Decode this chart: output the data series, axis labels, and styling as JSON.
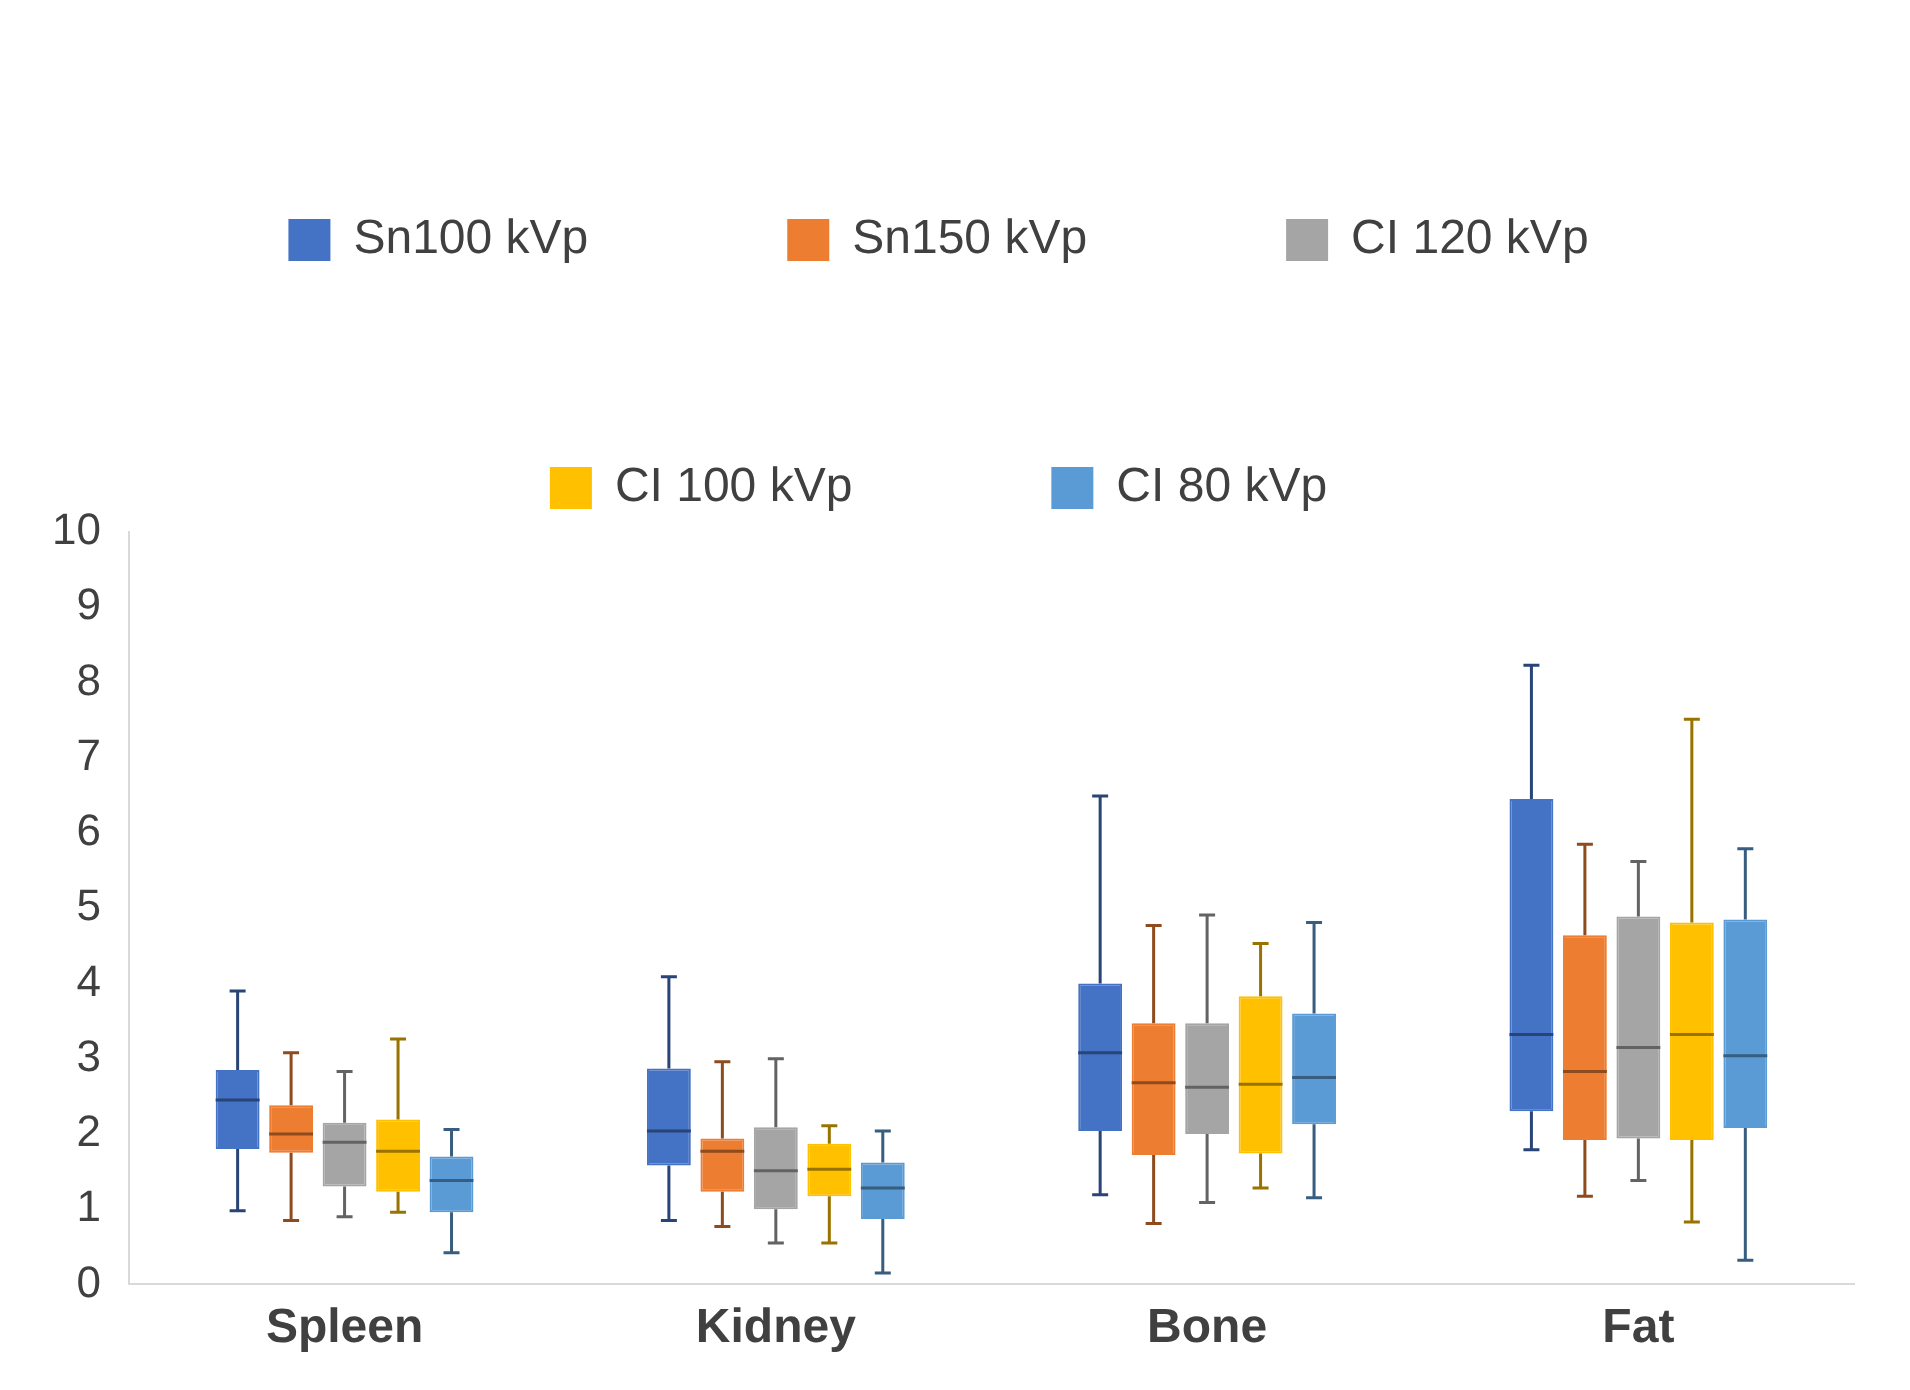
{
  "chart_data": {
    "type": "box",
    "categories": [
      "Spleen",
      "Kidney",
      "Bone",
      "Fat"
    ],
    "ylim": [
      0,
      10
    ],
    "yticks": [
      0,
      1,
      2,
      3,
      4,
      5,
      6,
      7,
      8,
      9,
      10
    ],
    "grid": false,
    "legend": "top",
    "series": [
      {
        "name": "Sn100 kVp",
        "color": "#4472c4",
        "boxes": [
          {
            "low": 0.98,
            "q1": 1.8,
            "median": 2.45,
            "q3": 2.85,
            "high": 3.9
          },
          {
            "low": 0.85,
            "q1": 1.58,
            "median": 2.04,
            "q3": 2.87,
            "high": 4.09
          },
          {
            "low": 1.19,
            "q1": 2.04,
            "median": 3.08,
            "q3": 4.0,
            "high": 6.49
          },
          {
            "low": 1.79,
            "q1": 2.3,
            "median": 3.32,
            "q3": 6.45,
            "high": 8.23
          }
        ]
      },
      {
        "name": "Sn150 kVp",
        "color": "#ed7d31",
        "boxes": [
          {
            "low": 0.85,
            "q1": 1.75,
            "median": 2.0,
            "q3": 2.38,
            "high": 3.08
          },
          {
            "low": 0.77,
            "q1": 1.23,
            "median": 1.77,
            "q3": 1.94,
            "high": 2.96
          },
          {
            "low": 0.81,
            "q1": 1.72,
            "median": 2.68,
            "q3": 3.47,
            "high": 4.77
          },
          {
            "low": 1.17,
            "q1": 1.92,
            "median": 2.83,
            "q3": 4.64,
            "high": 5.85
          }
        ]
      },
      {
        "name": "CI 120 kVp",
        "color": "#a5a5a5",
        "boxes": [
          {
            "low": 0.9,
            "q1": 1.3,
            "median": 1.89,
            "q3": 2.15,
            "high": 2.83
          },
          {
            "low": 0.55,
            "q1": 1.0,
            "median": 1.51,
            "q3": 2.09,
            "high": 3.0
          },
          {
            "low": 1.09,
            "q1": 2.0,
            "median": 2.62,
            "q3": 3.47,
            "high": 4.91
          },
          {
            "low": 1.38,
            "q1": 1.94,
            "median": 3.15,
            "q3": 4.89,
            "high": 5.62
          }
        ]
      },
      {
        "name": "CI 100 kVp",
        "color": "#ffc000",
        "boxes": [
          {
            "low": 0.96,
            "q1": 1.23,
            "median": 1.77,
            "q3": 2.19,
            "high": 3.26
          },
          {
            "low": 0.55,
            "q1": 1.17,
            "median": 1.53,
            "q3": 1.87,
            "high": 2.11
          },
          {
            "low": 1.28,
            "q1": 1.74,
            "median": 2.66,
            "q3": 3.83,
            "high": 4.53
          },
          {
            "low": 0.83,
            "q1": 1.92,
            "median": 3.32,
            "q3": 4.81,
            "high": 7.51
          }
        ]
      },
      {
        "name": "CI 80 kVp",
        "color": "#5b9bd5",
        "boxes": [
          {
            "low": 0.42,
            "q1": 0.96,
            "median": 1.38,
            "q3": 1.7,
            "high": 2.06
          },
          {
            "low": 0.15,
            "q1": 0.87,
            "median": 1.28,
            "q3": 1.62,
            "high": 2.04
          },
          {
            "low": 1.15,
            "q1": 2.13,
            "median": 2.75,
            "q3": 3.6,
            "high": 4.81
          },
          {
            "low": 0.32,
            "q1": 2.08,
            "median": 3.04,
            "q3": 4.85,
            "high": 5.79
          }
        ]
      }
    ]
  }
}
